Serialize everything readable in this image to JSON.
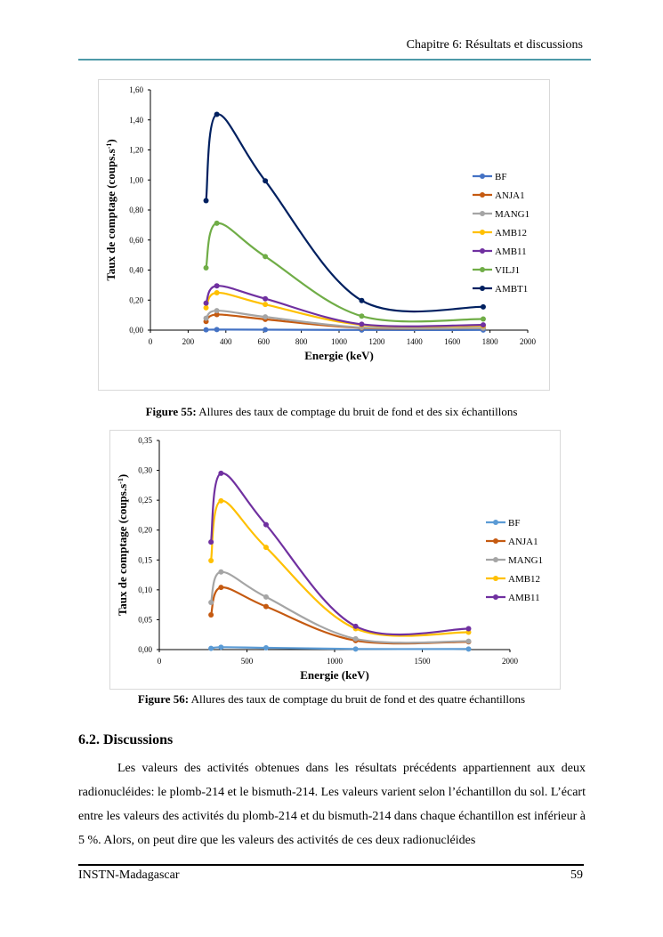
{
  "header": {
    "chapter": "Chapitre 6: Résultats et discussions"
  },
  "figures": [
    {
      "caption_label": "Figure 55:",
      "caption_text": " Allures des taux de comptage du bruit de fond et des six échantillons"
    },
    {
      "caption_label": "Figure 56:",
      "caption_text": " Allures des taux de comptage du bruit de fond et des quatre échantillons"
    }
  ],
  "chart_data": [
    {
      "type": "line",
      "smooth": true,
      "xlabel": "Energie (keV)",
      "ylabel": "Taux de comptage (coups.s-1)",
      "xlim": [
        0,
        2000
      ],
      "ylim": [
        0,
        1.6
      ],
      "xticks": [
        "0",
        "200",
        "400",
        "600",
        "800",
        "1000",
        "1200",
        "1400",
        "1600",
        "1800",
        "2000"
      ],
      "yticks": [
        "0,00",
        "0,20",
        "0,40",
        "0,60",
        "0,80",
        "1,00",
        "1,20",
        "1,40",
        "1,60"
      ],
      "legend": "right",
      "grid": false,
      "x": [
        295,
        352,
        609,
        1120,
        1764
      ],
      "series": [
        {
          "name": "BF",
          "color": "#4472c4",
          "values": [
            0.002,
            0.004,
            0.003,
            0.001,
            0.001
          ]
        },
        {
          "name": "ANJA1",
          "color": "#c55a11",
          "values": [
            0.058,
            0.104,
            0.072,
            0.015,
            0.013
          ]
        },
        {
          "name": "MANG1",
          "color": "#a5a5a5",
          "values": [
            0.079,
            0.13,
            0.088,
            0.018,
            0.014
          ]
        },
        {
          "name": "AMB12",
          "color": "#ffc000",
          "values": [
            0.149,
            0.249,
            0.171,
            0.035,
            0.029
          ]
        },
        {
          "name": "AMB11",
          "color": "#7030a0",
          "values": [
            0.18,
            0.295,
            0.209,
            0.039,
            0.035
          ]
        },
        {
          "name": "VILJ1",
          "color": "#70ad47",
          "values": [
            0.415,
            0.712,
            0.49,
            0.093,
            0.074
          ]
        },
        {
          "name": "AMBT1",
          "color": "#002060",
          "values": [
            0.862,
            1.437,
            0.994,
            0.197,
            0.155
          ]
        }
      ]
    },
    {
      "type": "line",
      "smooth": true,
      "xlabel": "Energie (keV)",
      "ylabel": "Taux de comptage (coups.s-1)",
      "xlim": [
        0,
        2000
      ],
      "ylim": [
        0,
        0.35
      ],
      "xticks": [
        "0",
        "500",
        "1000",
        "1500",
        "2000"
      ],
      "yticks": [
        "0,00",
        "0,05",
        "0,10",
        "0,15",
        "0,20",
        "0,25",
        "0,30",
        "0,35"
      ],
      "legend": "right",
      "grid": false,
      "x": [
        295,
        352,
        609,
        1120,
        1764
      ],
      "series": [
        {
          "name": "BF",
          "color": "#5b9bd5",
          "values": [
            0.002,
            0.004,
            0.003,
            0.001,
            0.001
          ]
        },
        {
          "name": "ANJA1",
          "color": "#c55a11",
          "values": [
            0.058,
            0.104,
            0.072,
            0.015,
            0.013
          ]
        },
        {
          "name": "MANG1",
          "color": "#a5a5a5",
          "values": [
            0.079,
            0.13,
            0.088,
            0.018,
            0.014
          ]
        },
        {
          "name": "AMB12",
          "color": "#ffc000",
          "values": [
            0.149,
            0.249,
            0.171,
            0.035,
            0.029
          ]
        },
        {
          "name": "AMB11",
          "color": "#7030a0",
          "values": [
            0.18,
            0.295,
            0.209,
            0.039,
            0.035
          ]
        }
      ]
    }
  ],
  "section": {
    "title": "6.2. Discussions"
  },
  "paragraph": "Les valeurs des activités obtenues dans les résultats précédents appartiennent aux deux radionucléides: le plomb-214 et le bismuth-214. Les valeurs varient selon l’échantillon du sol. L’écart entre les valeurs des activités du plomb-214 et du bismuth-214  dans chaque échantillon est inférieur à 5 %. Alors, on peut dire que les valeurs des activités de ces deux radionucléides",
  "footer": {
    "left": "INSTN-Madagascar",
    "page": "59"
  }
}
